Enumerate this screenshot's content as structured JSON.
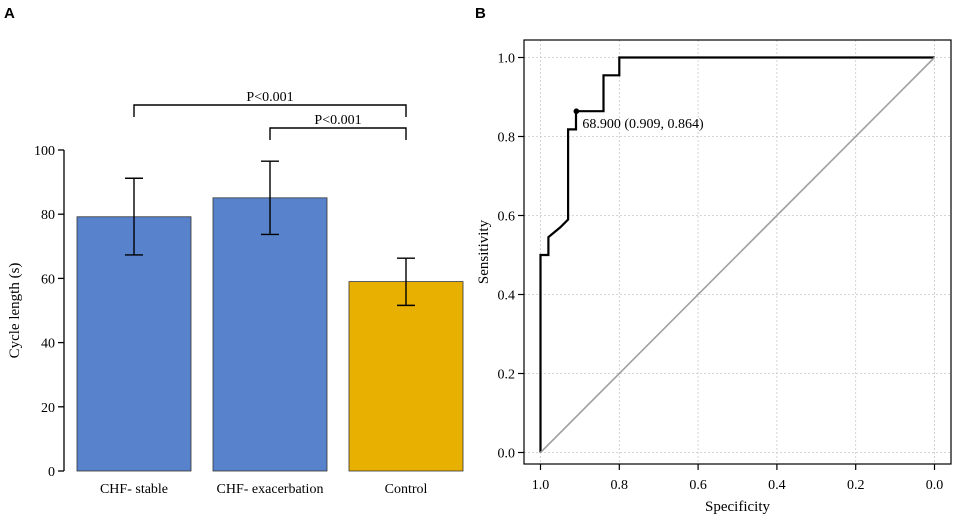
{
  "panels": {
    "a_label": "A",
    "b_label": "B"
  },
  "chart_data": [
    {
      "type": "bar",
      "panel": "A",
      "title": "",
      "xlabel": "",
      "ylabel": "Cycle length (s)",
      "ylim": [
        0,
        100
      ],
      "yticks": [
        0,
        20,
        40,
        60,
        80,
        100
      ],
      "categories": [
        "CHF- stable",
        "CHF- exacerbation",
        "Control"
      ],
      "values": [
        79.2,
        85.1,
        59.0
      ],
      "error_low": [
        67.3,
        73.7,
        51.6
      ],
      "error_high": [
        91.2,
        96.5,
        66.3
      ],
      "colors": [
        "#5882cc",
        "#5882cc",
        "#e8b000"
      ],
      "annotations": [
        {
          "text": "P<0.001",
          "from": "CHF- stable",
          "to": "Control"
        },
        {
          "text": "P<0.001",
          "from": "CHF- exacerbation",
          "to": "Control"
        }
      ]
    },
    {
      "type": "line",
      "panel": "B",
      "title": "",
      "xlabel": "Specificity",
      "ylabel": "Sensitivity",
      "xlim": [
        1.0,
        0.0
      ],
      "ylim": [
        0.0,
        1.0
      ],
      "xticks": [
        1.0,
        0.8,
        0.6,
        0.4,
        0.2,
        0.0
      ],
      "xtick_labels": [
        "1.0",
        "0.8",
        "0.6",
        "0.4",
        "0.2",
        "0.0"
      ],
      "yticks": [
        0.0,
        0.2,
        0.4,
        0.6,
        0.8,
        1.0
      ],
      "ytick_labels": [
        "0.0",
        "0.2",
        "0.4",
        "0.6",
        "0.8",
        "1.0"
      ],
      "grid": true,
      "series": [
        {
          "name": "ROC",
          "color": "#000000",
          "x": [
            1.0,
            1.0,
            0.98,
            0.98,
            0.95,
            0.93,
            0.93,
            0.91,
            0.91,
            0.84,
            0.84,
            0.8,
            0.8,
            0.0
          ],
          "y": [
            0.0,
            0.5,
            0.5,
            0.545,
            0.57,
            0.59,
            0.818,
            0.818,
            0.864,
            0.864,
            0.955,
            0.955,
            1.0,
            1.0
          ]
        },
        {
          "name": "Reference",
          "color": "#a0a0a0",
          "x": [
            1.0,
            0.0
          ],
          "y": [
            0.0,
            1.0
          ]
        }
      ],
      "cutoff_point": {
        "x": 0.909,
        "y": 0.864,
        "label": "68.900 (0.909, 0.864)"
      }
    }
  ]
}
